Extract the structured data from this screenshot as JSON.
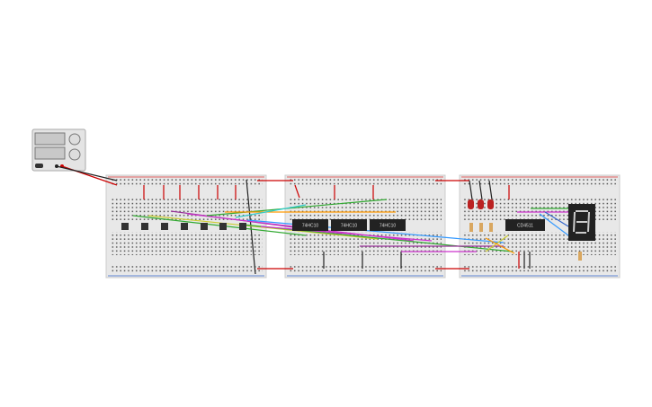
{
  "chips": [
    {
      "label": "74HC10"
    },
    {
      "label": "74HC10"
    },
    {
      "label": "74HC10"
    },
    {
      "label": "CD4511"
    }
  ]
}
